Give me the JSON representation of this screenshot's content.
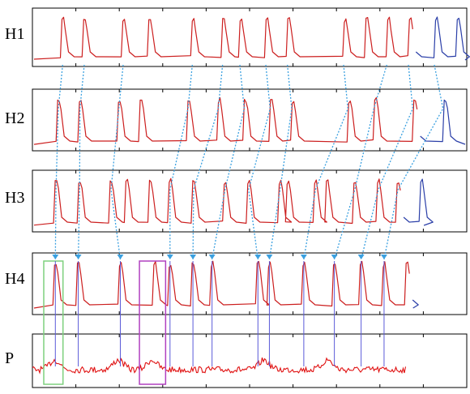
{
  "chart_data": {
    "type": "line",
    "panels": [
      {
        "label": "H1",
        "color_after": "#2b3fa8",
        "blue_from": 0.88,
        "spikes": [
          0.07,
          0.12,
          0.21,
          0.27,
          0.37,
          0.44,
          0.48,
          0.54,
          0.59,
          0.72,
          0.77,
          0.82,
          0.87,
          0.93,
          0.98
        ]
      },
      {
        "label": "H2",
        "color_after": "#2b3fa8",
        "blue_from": 0.89,
        "spikes": [
          0.06,
          0.11,
          0.2,
          0.25,
          0.36,
          0.43,
          0.49,
          0.55,
          0.6,
          0.73,
          0.79,
          0.88,
          0.95
        ]
      },
      {
        "label": "H3",
        "color_after": "#2b3fa8",
        "blue_from": 0.94,
        "spikes": [
          0.06,
          0.12,
          0.2,
          0.24,
          0.3,
          0.35,
          0.41,
          0.49,
          0.55,
          0.63,
          0.65,
          0.72,
          0.75,
          0.82,
          0.88,
          0.93,
          0.99
        ]
      },
      {
        "label": "H4",
        "color_after": "#2b3fa8",
        "blue_from": 0.99,
        "spikes": [
          0.06,
          0.12,
          0.23,
          0.32,
          0.36,
          0.42,
          0.47,
          0.59,
          0.62,
          0.71,
          0.79,
          0.86,
          0.92,
          0.98
        ]
      },
      {
        "label": "P",
        "color_after": "#e01010",
        "blue_from": 1.0,
        "spikes": [
          0.06,
          0.23,
          0.32,
          0.62,
          0.79
        ]
      }
    ],
    "propagation_arrows": [
      [
        0.07,
        0.06,
        0.06,
        0.06
      ],
      [
        0.12,
        0.11,
        0.12,
        0.12
      ],
      [
        0.21,
        0.2,
        0.2,
        0.23
      ],
      [
        0.37,
        0.36,
        0.35,
        0.36
      ],
      [
        0.44,
        0.43,
        0.41,
        0.42
      ],
      [
        0.48,
        0.49,
        0.49,
        0.47
      ],
      [
        0.54,
        0.55,
        0.55,
        0.59
      ],
      [
        0.59,
        0.6,
        0.63,
        0.62
      ],
      [
        0.72,
        0.73,
        0.72,
        0.71
      ],
      [
        0.82,
        0.79,
        0.82,
        0.79
      ],
      [
        0.87,
        0.88,
        0.88,
        0.86
      ],
      [
        0.93,
        0.95,
        0.93,
        0.92
      ]
    ],
    "highlight_boxes": [
      {
        "color": "green",
        "x0": 0.0,
        "x1": 0.08
      },
      {
        "color": "purple",
        "x0": 0.28,
        "x1": 0.34
      }
    ]
  }
}
